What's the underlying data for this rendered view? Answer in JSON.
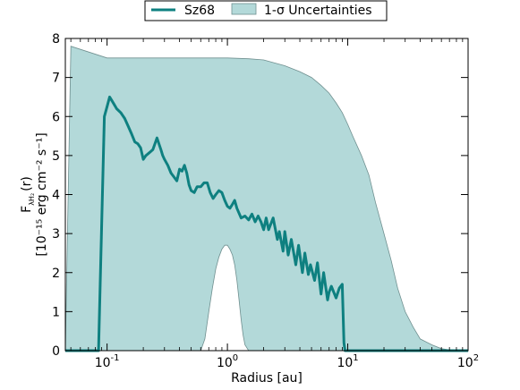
{
  "chart_data": {
    "type": "line",
    "xlabel": "Radius [au]",
    "ylabel_line1": "F",
    "ylabel_sub": "λH₂",
    "ylabel_tail": "(r)",
    "ylabel_line2": "[10⁻¹⁵ erg cm⁻² s⁻¹]",
    "xscale": "log",
    "xlim": [
      0.045,
      100
    ],
    "ylim": [
      0,
      8
    ],
    "grid": false,
    "legend_position": "top-center",
    "x_ticks": [
      {
        "value": 0.1,
        "base": "10",
        "exp": "-1"
      },
      {
        "value": 1,
        "base": "10",
        "exp": "0"
      },
      {
        "value": 10,
        "base": "10",
        "exp": "1"
      },
      {
        "value": 100,
        "base": "10",
        "exp": "2"
      }
    ],
    "y_ticks": [
      "0",
      "1",
      "2",
      "3",
      "4",
      "5",
      "6",
      "7",
      "8"
    ],
    "colors": {
      "line": "#0e8080",
      "band_fill": "#b3d9d9",
      "band_edge": "#6f8f8f"
    },
    "series": [
      {
        "name": "Sz68",
        "x": [
          0.045,
          0.085,
          0.095,
          0.1,
          0.105,
          0.11,
          0.115,
          0.12,
          0.13,
          0.14,
          0.15,
          0.16,
          0.17,
          0.18,
          0.19,
          0.2,
          0.21,
          0.22,
          0.23,
          0.24,
          0.25,
          0.26,
          0.27,
          0.28,
          0.29,
          0.3,
          0.32,
          0.34,
          0.36,
          0.38,
          0.4,
          0.42,
          0.44,
          0.46,
          0.48,
          0.5,
          0.53,
          0.56,
          0.6,
          0.64,
          0.68,
          0.72,
          0.76,
          0.8,
          0.85,
          0.9,
          0.95,
          1.0,
          1.05,
          1.1,
          1.15,
          1.2,
          1.3,
          1.4,
          1.5,
          1.6,
          1.7,
          1.8,
          1.9,
          2.0,
          2.1,
          2.2,
          2.4,
          2.6,
          2.7,
          2.9,
          3.0,
          3.2,
          3.4,
          3.7,
          3.9,
          4.2,
          4.4,
          4.7,
          4.9,
          5.3,
          5.6,
          6.0,
          6.3,
          6.8,
          7.0,
          7.3,
          8.0,
          8.5,
          9.0,
          9.3,
          9.5,
          100
        ],
        "y": [
          0,
          0,
          6.0,
          6.25,
          6.5,
          6.4,
          6.3,
          6.2,
          6.1,
          5.95,
          5.75,
          5.55,
          5.35,
          5.3,
          5.2,
          4.9,
          5.0,
          5.05,
          5.1,
          5.15,
          5.3,
          5.45,
          5.3,
          5.15,
          5.0,
          4.9,
          4.75,
          4.55,
          4.45,
          4.35,
          4.65,
          4.6,
          4.75,
          4.55,
          4.25,
          4.1,
          4.05,
          4.2,
          4.2,
          4.3,
          4.3,
          4.05,
          3.9,
          4.0,
          4.1,
          4.05,
          3.85,
          3.7,
          3.65,
          3.75,
          3.85,
          3.65,
          3.4,
          3.45,
          3.35,
          3.5,
          3.3,
          3.45,
          3.3,
          3.1,
          3.4,
          3.1,
          3.4,
          2.85,
          3.05,
          2.55,
          3.05,
          2.45,
          2.85,
          2.2,
          2.7,
          2.0,
          2.5,
          1.95,
          2.2,
          1.8,
          2.25,
          1.45,
          2.0,
          1.3,
          1.5,
          1.65,
          1.35,
          1.6,
          1.7,
          0.2,
          0,
          0
        ]
      },
      {
        "name": "1-σ Uncertainties",
        "band_x": [
          0.045,
          0.05,
          0.1,
          0.2,
          0.5,
          1.0,
          1.5,
          2.0,
          3.0,
          4.0,
          5.0,
          6.0,
          7.0,
          8.0,
          9.0,
          10.0,
          11.0,
          13.0,
          15.0,
          17.0,
          20.0,
          23.0,
          26.0,
          30.0,
          35.0,
          40.0,
          50.0,
          60.0,
          70.0,
          80.0,
          90.0,
          100.0
        ],
        "band_upper": [
          0,
          7.8,
          7.5,
          7.5,
          7.5,
          7.5,
          7.48,
          7.45,
          7.3,
          7.15,
          7.0,
          6.8,
          6.6,
          6.35,
          6.1,
          5.8,
          5.5,
          5.0,
          4.5,
          3.8,
          3.0,
          2.3,
          1.6,
          1.0,
          0.6,
          0.3,
          0.15,
          0.05,
          0.02,
          0.01,
          0,
          0
        ],
        "band_lower_x": [
          0.045,
          0.6,
          0.65,
          0.7,
          0.75,
          0.8,
          0.85,
          0.9,
          0.95,
          1.0,
          1.05,
          1.1,
          1.15,
          1.2,
          1.25,
          1.3,
          1.35,
          1.4,
          1.5,
          100
        ],
        "band_lower": [
          0,
          0,
          0.3,
          1.0,
          1.6,
          2.1,
          2.4,
          2.6,
          2.7,
          2.7,
          2.6,
          2.45,
          2.2,
          1.8,
          1.3,
          0.8,
          0.4,
          0.15,
          0,
          0
        ]
      }
    ]
  }
}
